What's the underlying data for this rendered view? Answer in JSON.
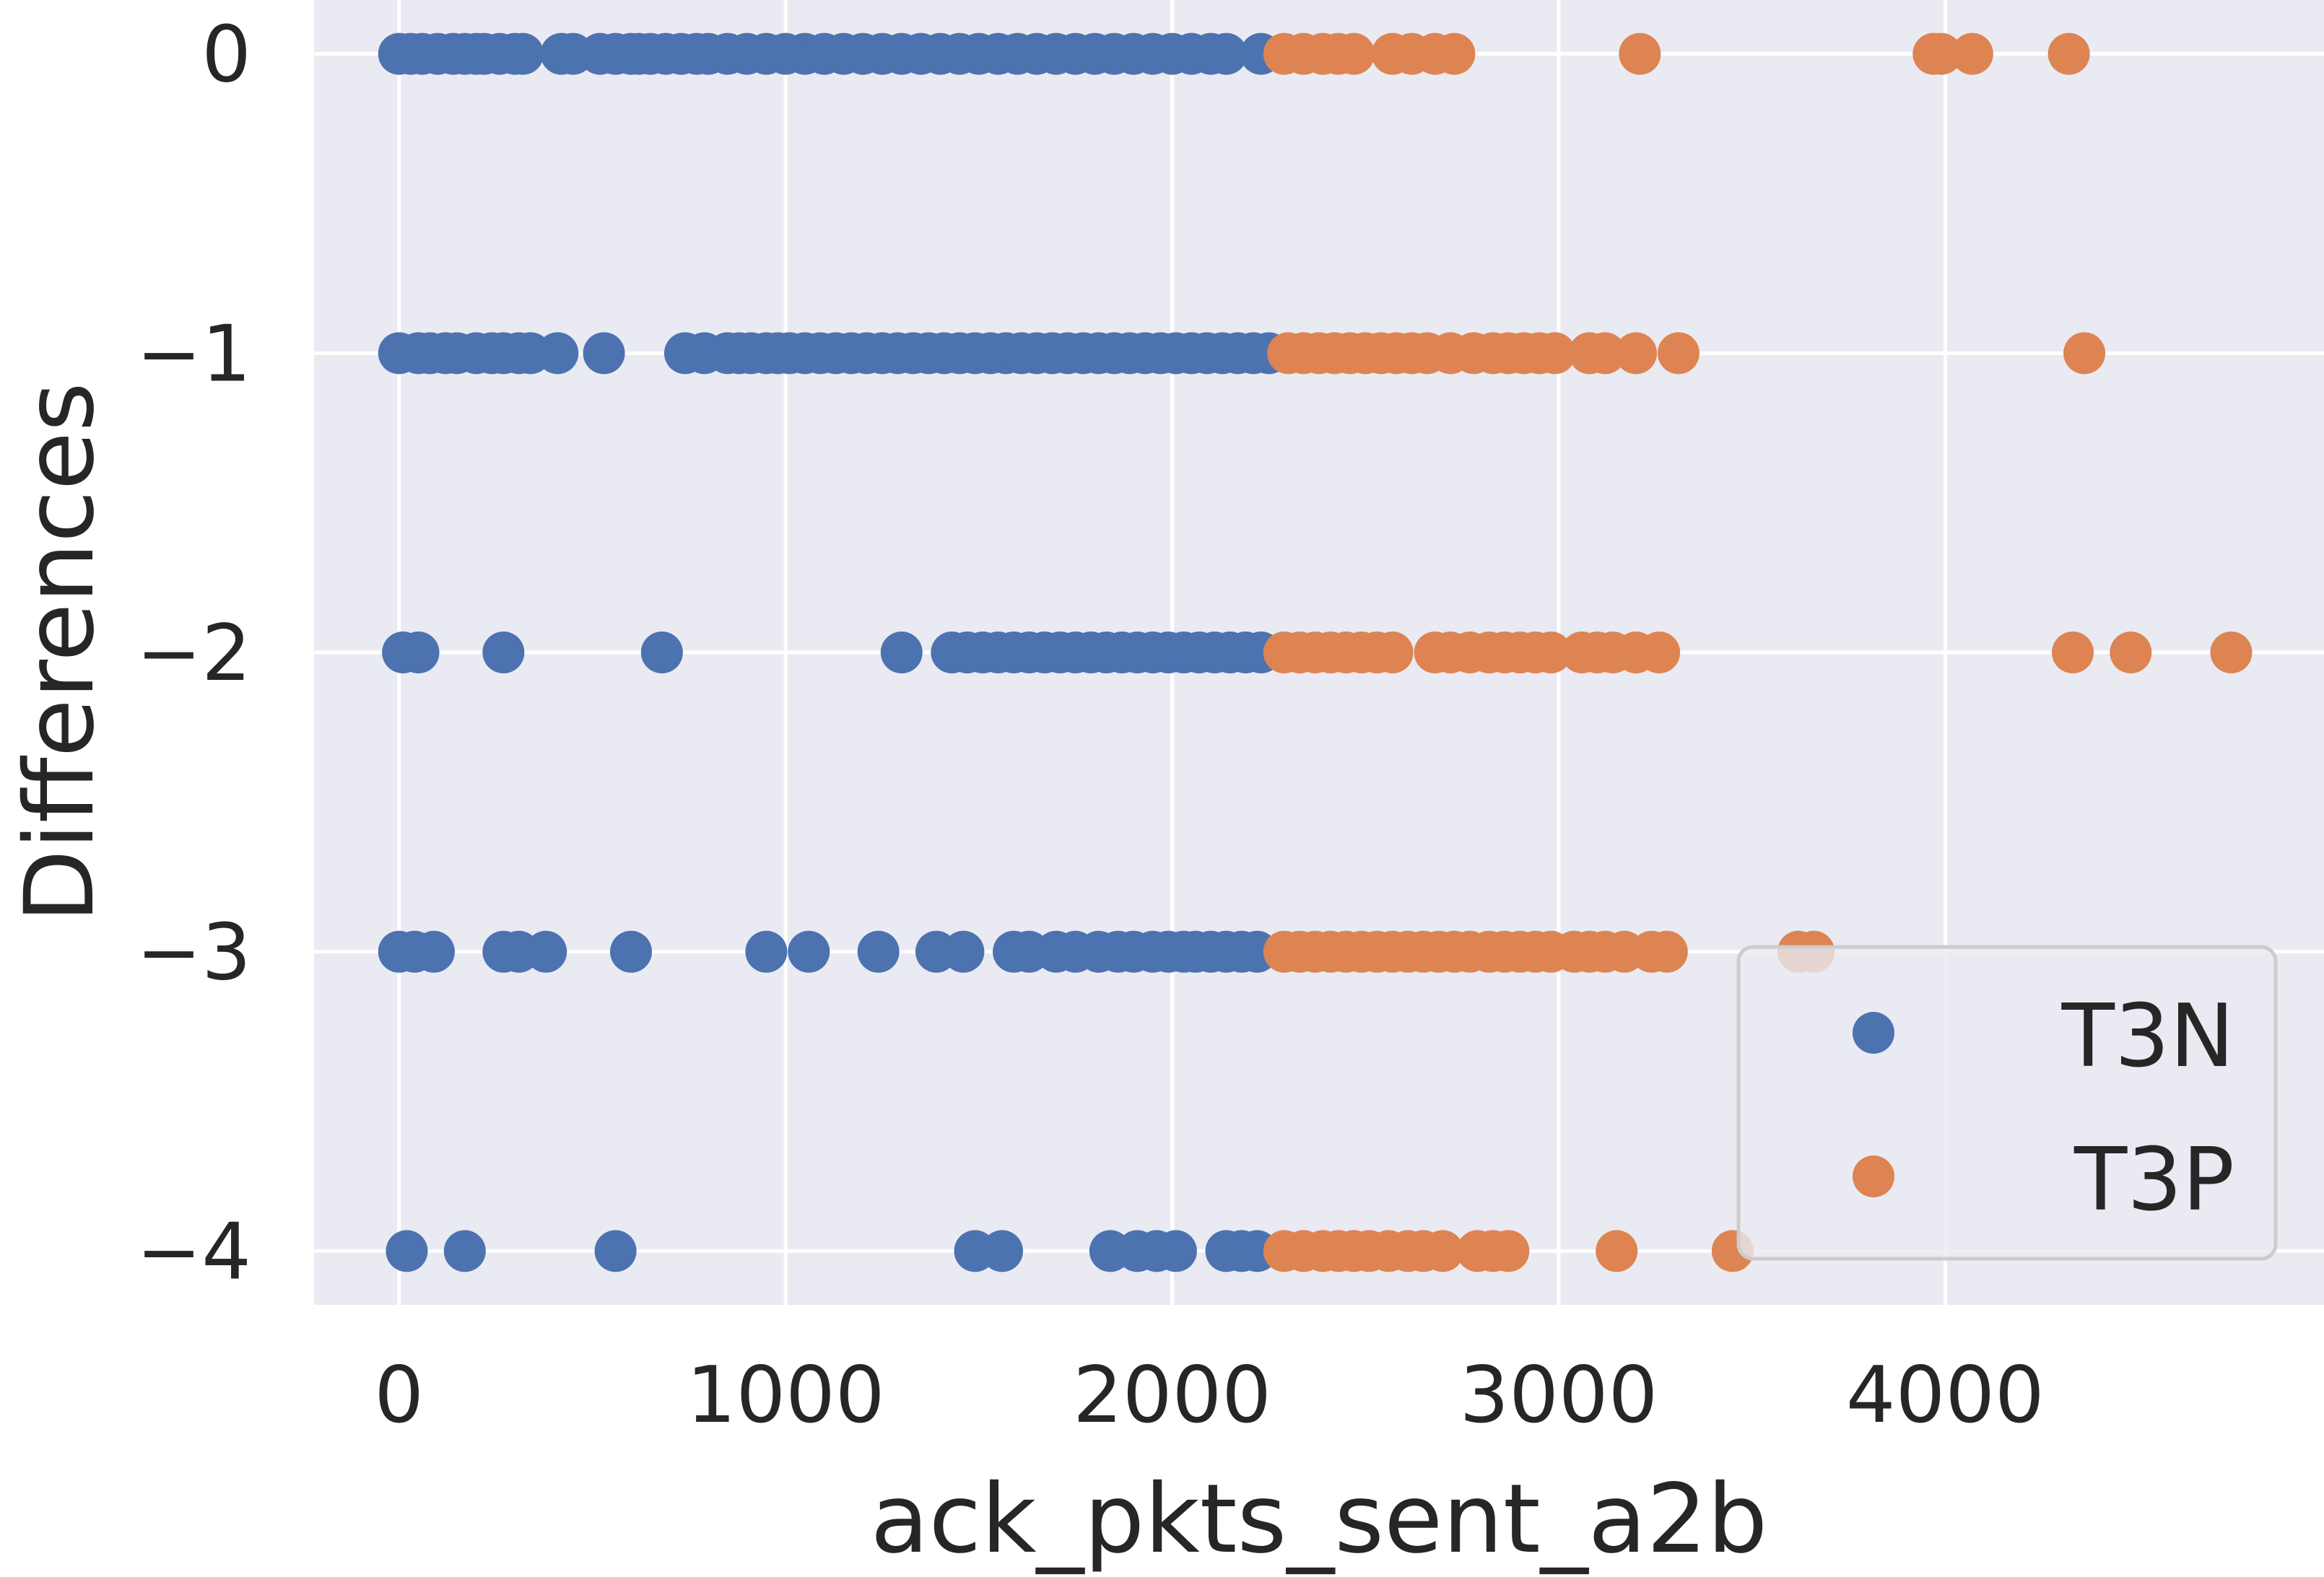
{
  "chart_data": {
    "type": "scatter",
    "title": "",
    "xlabel": "ack_pkts_sent_a2b",
    "ylabel": "Differences",
    "xlim": [
      -220,
      4980
    ],
    "ylim": [
      -4.18,
      0.18
    ],
    "xticks": [
      0,
      1000,
      2000,
      3000,
      4000
    ],
    "xtick_labels": [
      "0",
      "1000",
      "2000",
      "3000",
      "4000"
    ],
    "yticks": [
      0,
      -1,
      -2,
      -3,
      -4
    ],
    "ytick_labels": [
      "0",
      "−1",
      "−2",
      "−3",
      "−4"
    ],
    "grid": true,
    "legend_position": "lower-right",
    "colors": {
      "background": "#EAEAF2",
      "grid": "#FFFFFF",
      "text": "#262626",
      "T3N": "#4C72B0",
      "T3P": "#DD8452"
    },
    "series": [
      {
        "name": "T3N",
        "color": "#4C72B0",
        "points": [
          [
            0,
            0
          ],
          [
            30,
            0
          ],
          [
            60,
            0
          ],
          [
            100,
            0
          ],
          [
            140,
            0
          ],
          [
            170,
            0
          ],
          [
            200,
            0
          ],
          [
            220,
            0
          ],
          [
            260,
            0
          ],
          [
            300,
            0
          ],
          [
            320,
            0
          ],
          [
            420,
            0
          ],
          [
            450,
            0
          ],
          [
            520,
            0
          ],
          [
            560,
            0
          ],
          [
            600,
            0
          ],
          [
            620,
            0
          ],
          [
            650,
            0
          ],
          [
            690,
            0
          ],
          [
            730,
            0
          ],
          [
            770,
            0
          ],
          [
            800,
            0
          ],
          [
            850,
            0
          ],
          [
            900,
            0
          ],
          [
            950,
            0
          ],
          [
            1000,
            0
          ],
          [
            1050,
            0
          ],
          [
            1100,
            0
          ],
          [
            1150,
            0
          ],
          [
            1200,
            0
          ],
          [
            1250,
            0
          ],
          [
            1300,
            0
          ],
          [
            1350,
            0
          ],
          [
            1400,
            0
          ],
          [
            1450,
            0
          ],
          [
            1500,
            0
          ],
          [
            1550,
            0
          ],
          [
            1600,
            0
          ],
          [
            1650,
            0
          ],
          [
            1700,
            0
          ],
          [
            1750,
            0
          ],
          [
            1800,
            0
          ],
          [
            1850,
            0
          ],
          [
            1900,
            0
          ],
          [
            1950,
            0
          ],
          [
            2000,
            0
          ],
          [
            2050,
            0
          ],
          [
            2100,
            0
          ],
          [
            2140,
            0
          ],
          [
            2230,
            0
          ],
          [
            0,
            -1
          ],
          [
            50,
            -1
          ],
          [
            80,
            -1
          ],
          [
            120,
            -1
          ],
          [
            150,
            -1
          ],
          [
            200,
            -1
          ],
          [
            240,
            -1
          ],
          [
            270,
            -1
          ],
          [
            310,
            -1
          ],
          [
            340,
            -1
          ],
          [
            410,
            -1
          ],
          [
            530,
            -1
          ],
          [
            740,
            -1
          ],
          [
            790,
            -1
          ],
          [
            850,
            -1
          ],
          [
            880,
            -1
          ],
          [
            910,
            -1
          ],
          [
            950,
            -1
          ],
          [
            980,
            -1
          ],
          [
            1010,
            -1
          ],
          [
            1050,
            -1
          ],
          [
            1090,
            -1
          ],
          [
            1130,
            -1
          ],
          [
            1170,
            -1
          ],
          [
            1210,
            -1
          ],
          [
            1250,
            -1
          ],
          [
            1290,
            -1
          ],
          [
            1330,
            -1
          ],
          [
            1370,
            -1
          ],
          [
            1410,
            -1
          ],
          [
            1450,
            -1
          ],
          [
            1490,
            -1
          ],
          [
            1530,
            -1
          ],
          [
            1570,
            -1
          ],
          [
            1610,
            -1
          ],
          [
            1650,
            -1
          ],
          [
            1690,
            -1
          ],
          [
            1730,
            -1
          ],
          [
            1770,
            -1
          ],
          [
            1810,
            -1
          ],
          [
            1850,
            -1
          ],
          [
            1890,
            -1
          ],
          [
            1930,
            -1
          ],
          [
            1970,
            -1
          ],
          [
            2010,
            -1
          ],
          [
            2050,
            -1
          ],
          [
            2090,
            -1
          ],
          [
            2130,
            -1
          ],
          [
            2170,
            -1
          ],
          [
            2210,
            -1
          ],
          [
            2250,
            -1
          ],
          [
            10,
            -2
          ],
          [
            50,
            -2
          ],
          [
            270,
            -2
          ],
          [
            680,
            -2
          ],
          [
            1300,
            -2
          ],
          [
            1430,
            -2
          ],
          [
            1470,
            -2
          ],
          [
            1510,
            -2
          ],
          [
            1550,
            -2
          ],
          [
            1590,
            -2
          ],
          [
            1630,
            -2
          ],
          [
            1670,
            -2
          ],
          [
            1710,
            -2
          ],
          [
            1750,
            -2
          ],
          [
            1790,
            -2
          ],
          [
            1830,
            -2
          ],
          [
            1870,
            -2
          ],
          [
            1910,
            -2
          ],
          [
            1950,
            -2
          ],
          [
            1990,
            -2
          ],
          [
            2030,
            -2
          ],
          [
            2070,
            -2
          ],
          [
            2110,
            -2
          ],
          [
            2150,
            -2
          ],
          [
            2190,
            -2
          ],
          [
            2230,
            -2
          ],
          [
            0,
            -3
          ],
          [
            40,
            -3
          ],
          [
            90,
            -3
          ],
          [
            270,
            -3
          ],
          [
            310,
            -3
          ],
          [
            380,
            -3
          ],
          [
            600,
            -3
          ],
          [
            950,
            -3
          ],
          [
            1060,
            -3
          ],
          [
            1240,
            -3
          ],
          [
            1390,
            -3
          ],
          [
            1460,
            -3
          ],
          [
            1590,
            -3
          ],
          [
            1630,
            -3
          ],
          [
            1700,
            -3
          ],
          [
            1750,
            -3
          ],
          [
            1810,
            -3
          ],
          [
            1860,
            -3
          ],
          [
            1900,
            -3
          ],
          [
            1950,
            -3
          ],
          [
            1990,
            -3
          ],
          [
            2030,
            -3
          ],
          [
            2060,
            -3
          ],
          [
            2100,
            -3
          ],
          [
            2140,
            -3
          ],
          [
            2180,
            -3
          ],
          [
            2220,
            -3
          ],
          [
            20,
            -4
          ],
          [
            170,
            -4
          ],
          [
            560,
            -4
          ],
          [
            1490,
            -4
          ],
          [
            1560,
            -4
          ],
          [
            1840,
            -4
          ],
          [
            1910,
            -4
          ],
          [
            1960,
            -4
          ],
          [
            2010,
            -4
          ],
          [
            2140,
            -4
          ],
          [
            2180,
            -4
          ],
          [
            2220,
            -4
          ]
        ]
      },
      {
        "name": "T3P",
        "color": "#DD8452",
        "points": [
          [
            2290,
            0
          ],
          [
            2340,
            0
          ],
          [
            2390,
            0
          ],
          [
            2430,
            0
          ],
          [
            2470,
            0
          ],
          [
            2570,
            0
          ],
          [
            2620,
            0
          ],
          [
            2680,
            0
          ],
          [
            2730,
            0
          ],
          [
            3210,
            0
          ],
          [
            3970,
            0
          ],
          [
            3990,
            0
          ],
          [
            4070,
            0
          ],
          [
            4320,
            0
          ],
          [
            2300,
            -1
          ],
          [
            2340,
            -1
          ],
          [
            2380,
            -1
          ],
          [
            2420,
            -1
          ],
          [
            2460,
            -1
          ],
          [
            2500,
            -1
          ],
          [
            2540,
            -1
          ],
          [
            2580,
            -1
          ],
          [
            2620,
            -1
          ],
          [
            2660,
            -1
          ],
          [
            2720,
            -1
          ],
          [
            2780,
            -1
          ],
          [
            2830,
            -1
          ],
          [
            2870,
            -1
          ],
          [
            2910,
            -1
          ],
          [
            2950,
            -1
          ],
          [
            2990,
            -1
          ],
          [
            3080,
            -1
          ],
          [
            3120,
            -1
          ],
          [
            3200,
            -1
          ],
          [
            3310,
            -1
          ],
          [
            4360,
            -1
          ],
          [
            2290,
            -2
          ],
          [
            2330,
            -2
          ],
          [
            2370,
            -2
          ],
          [
            2410,
            -2
          ],
          [
            2450,
            -2
          ],
          [
            2490,
            -2
          ],
          [
            2530,
            -2
          ],
          [
            2570,
            -2
          ],
          [
            2680,
            -2
          ],
          [
            2720,
            -2
          ],
          [
            2770,
            -2
          ],
          [
            2820,
            -2
          ],
          [
            2860,
            -2
          ],
          [
            2900,
            -2
          ],
          [
            2940,
            -2
          ],
          [
            2980,
            -2
          ],
          [
            3060,
            -2
          ],
          [
            3100,
            -2
          ],
          [
            3140,
            -2
          ],
          [
            3200,
            -2
          ],
          [
            3260,
            -2
          ],
          [
            4330,
            -2
          ],
          [
            4480,
            -2
          ],
          [
            4740,
            -2
          ],
          [
            2290,
            -3
          ],
          [
            2330,
            -3
          ],
          [
            2370,
            -3
          ],
          [
            2410,
            -3
          ],
          [
            2450,
            -3
          ],
          [
            2490,
            -3
          ],
          [
            2530,
            -3
          ],
          [
            2570,
            -3
          ],
          [
            2610,
            -3
          ],
          [
            2650,
            -3
          ],
          [
            2690,
            -3
          ],
          [
            2730,
            -3
          ],
          [
            2770,
            -3
          ],
          [
            2820,
            -3
          ],
          [
            2860,
            -3
          ],
          [
            2900,
            -3
          ],
          [
            2940,
            -3
          ],
          [
            2980,
            -3
          ],
          [
            3040,
            -3
          ],
          [
            3080,
            -3
          ],
          [
            3120,
            -3
          ],
          [
            3170,
            -3
          ],
          [
            3240,
            -3
          ],
          [
            3280,
            -3
          ],
          [
            3620,
            -3
          ],
          [
            3660,
            -3
          ],
          [
            2290,
            -4
          ],
          [
            2340,
            -4
          ],
          [
            2390,
            -4
          ],
          [
            2430,
            -4
          ],
          [
            2470,
            -4
          ],
          [
            2510,
            -4
          ],
          [
            2560,
            -4
          ],
          [
            2610,
            -4
          ],
          [
            2650,
            -4
          ],
          [
            2700,
            -4
          ],
          [
            2790,
            -4
          ],
          [
            2830,
            -4
          ],
          [
            2870,
            -4
          ],
          [
            3150,
            -4
          ],
          [
            3450,
            -4
          ]
        ]
      }
    ]
  }
}
